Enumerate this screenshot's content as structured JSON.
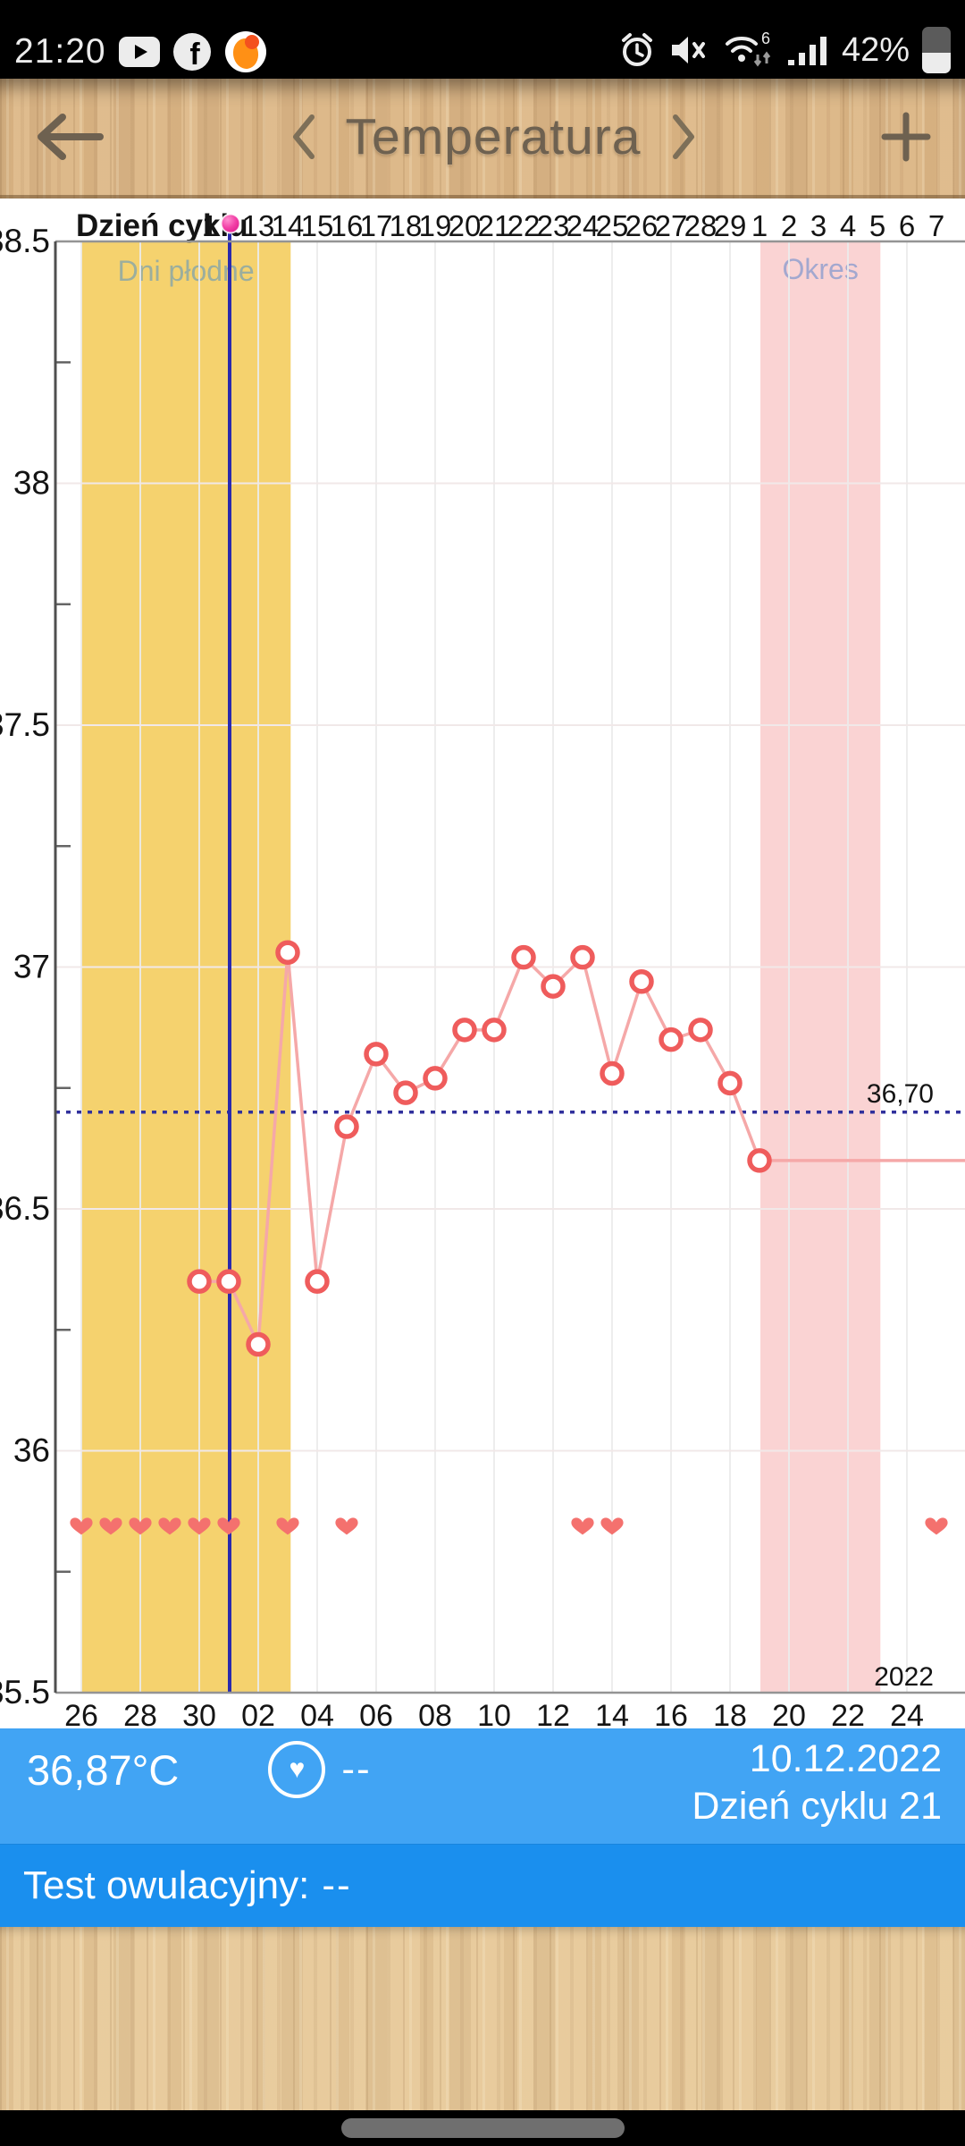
{
  "status_bar": {
    "time": "21:20",
    "battery_percent": "42%",
    "wifi_standard": "6",
    "facebook_glyph": "f"
  },
  "header": {
    "title": "Temperatura"
  },
  "chart_data": {
    "type": "line",
    "title": "Temperatura",
    "day_row": {
      "label": "Dzień cyklu",
      "partial_digit": {
        "text": "1",
        "x_day": 11.36
      },
      "ovulation_marker_day": 12,
      "days": [
        13,
        14,
        15,
        16,
        17,
        18,
        19,
        20,
        21,
        22,
        23,
        24,
        25,
        26,
        27,
        28,
        29
      ],
      "next_cycle_days": [
        1,
        2,
        3,
        4,
        5,
        6,
        7
      ]
    },
    "y_axis": {
      "min": 35.5,
      "max": 38.5,
      "labels": [
        {
          "value": 38.5,
          "text": "38.5"
        },
        {
          "value": 38.0,
          "text": "38"
        },
        {
          "value": 37.5,
          "text": "37.5"
        },
        {
          "value": 37.0,
          "text": "37"
        },
        {
          "value": 36.5,
          "text": "36.5"
        },
        {
          "value": 36.0,
          "text": "36"
        },
        {
          "value": 35.5,
          "text": "35.5"
        }
      ],
      "minor_ticks": [
        38.25,
        37.75,
        37.25,
        36.75,
        36.25,
        35.75
      ]
    },
    "x_axis": {
      "year_label": "2022",
      "date_labels": [
        {
          "day": 7,
          "text": "26"
        },
        {
          "day": 9,
          "text": "28"
        },
        {
          "day": 11,
          "text": "30"
        },
        {
          "day": 13,
          "text": "02"
        },
        {
          "day": 15,
          "text": "04"
        },
        {
          "day": 17,
          "text": "06"
        },
        {
          "day": 19,
          "text": "08"
        },
        {
          "day": 21,
          "text": "10"
        },
        {
          "day": 23,
          "text": "12"
        },
        {
          "day": 25,
          "text": "14"
        },
        {
          "day": 27,
          "text": "16"
        },
        {
          "day": 29,
          "text": "18"
        },
        {
          "day": 31,
          "text": "20"
        },
        {
          "day": 33,
          "text": "22"
        },
        {
          "day": 35,
          "text": "24"
        }
      ]
    },
    "coverline": {
      "temp": 36.7,
      "label": "36,70"
    },
    "bands": {
      "fertile": {
        "label": "Dni płodne",
        "day_from": 7.0,
        "day_to": 14.1,
        "color": "#f5d26e",
        "label_color": "#9cae9d"
      },
      "period": {
        "label": "Okres",
        "day_from": 30.03,
        "day_to": 34.1,
        "color": "#fad3d3",
        "label_color": "#a3a8cf"
      }
    },
    "selected_day_line": {
      "day": 12,
      "color": "#2a2aad"
    },
    "points": [
      {
        "cycle_day": 11,
        "date": "30.11",
        "temp": 36.35
      },
      {
        "cycle_day": 12,
        "date": "01.12",
        "temp": 36.35
      },
      {
        "cycle_day": 13,
        "date": "02.12",
        "temp": 36.22
      },
      {
        "cycle_day": 14,
        "date": "03.12",
        "temp": 37.03
      },
      {
        "cycle_day": 15,
        "date": "04.12",
        "temp": 36.35
      },
      {
        "cycle_day": 16,
        "date": "05.12",
        "temp": 36.67
      },
      {
        "cycle_day": 17,
        "date": "06.12",
        "temp": 36.82
      },
      {
        "cycle_day": 18,
        "date": "07.12",
        "temp": 36.74
      },
      {
        "cycle_day": 19,
        "date": "08.12",
        "temp": 36.77
      },
      {
        "cycle_day": 20,
        "date": "09.12",
        "temp": 36.87
      },
      {
        "cycle_day": 21,
        "date": "10.12",
        "temp": 36.87
      },
      {
        "cycle_day": 22,
        "date": "11.12",
        "temp": 37.02
      },
      {
        "cycle_day": 23,
        "date": "12.12",
        "temp": 36.96
      },
      {
        "cycle_day": 24,
        "date": "13.12",
        "temp": 37.02
      },
      {
        "cycle_day": 25,
        "date": "14.12",
        "temp": 36.78
      },
      {
        "cycle_day": 26,
        "date": "15.12",
        "temp": 36.97
      },
      {
        "cycle_day": 27,
        "date": "16.12",
        "temp": 36.85
      },
      {
        "cycle_day": 28,
        "date": "17.12",
        "temp": 36.87
      },
      {
        "cycle_day": 29,
        "date": "18.12",
        "temp": 36.76
      },
      {
        "cycle_day": 30,
        "date": "19.12",
        "temp": 36.6
      }
    ],
    "flat_tail": {
      "from_day": 30,
      "temp": 36.6,
      "to_chart_edge": true
    },
    "hearts_days": [
      7,
      8,
      9,
      10,
      11,
      12,
      14,
      16,
      24,
      25,
      36
    ],
    "colors": {
      "line": "#f5a8a8",
      "marker_ring": "#ef5c5c",
      "marker_fill": "#ffffff",
      "heart": "#f4716e",
      "coverline": "#30309c",
      "grid_h": "#f1e8e8",
      "grid_v": "#ececec",
      "axis_frame": "#949494",
      "axis_left": "#4f4f4f",
      "text": "#141414",
      "ovulation_dot": "#f23fa6"
    }
  },
  "info_bar": {
    "temperature": "36,87°C",
    "intercourse_value": "--",
    "date": "10.12.2022",
    "cycle_day_label": "Dzień cyklu 21"
  },
  "test_bar": {
    "label": "Test owulacyjny:",
    "value": "--"
  }
}
